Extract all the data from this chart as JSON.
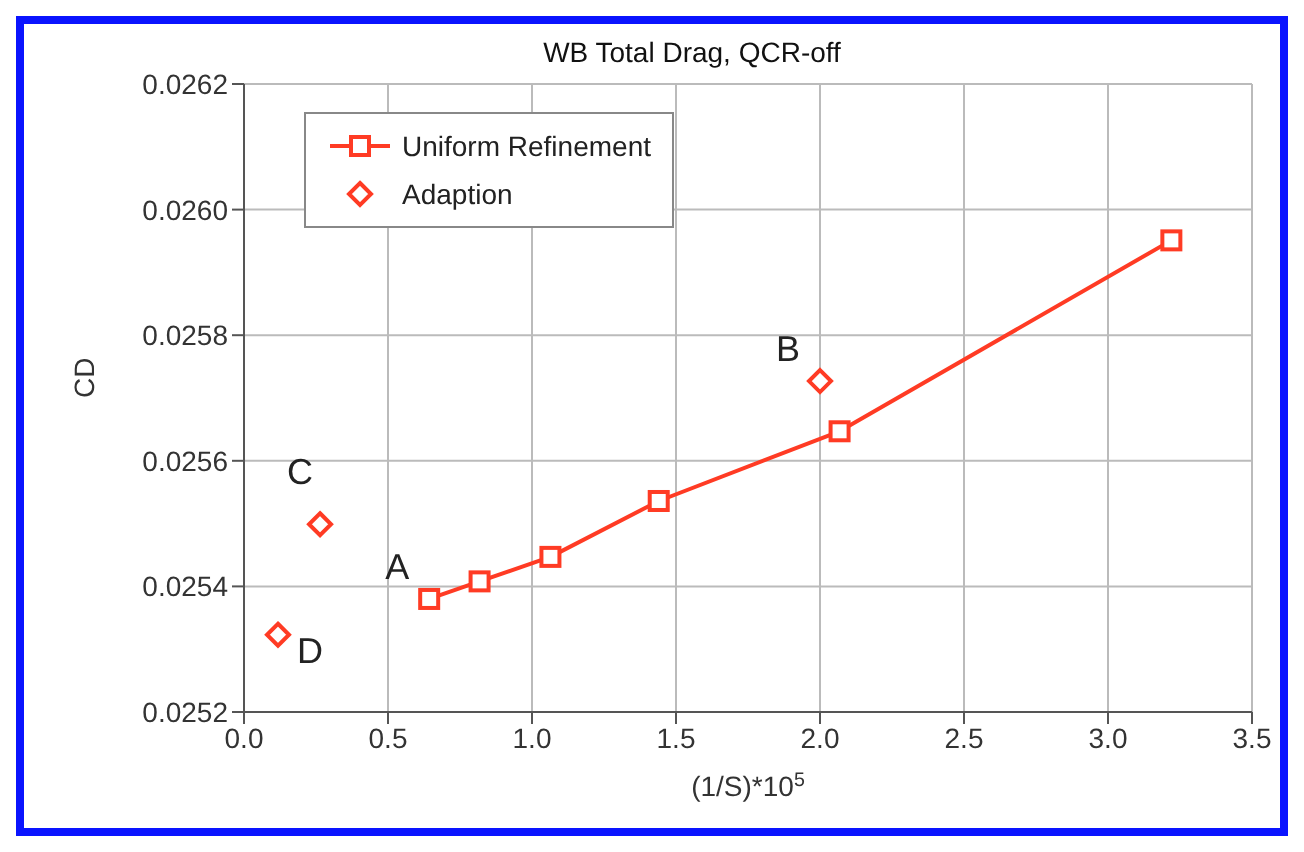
{
  "chart_data": {
    "type": "line",
    "title": "WB Total Drag, QCR-off",
    "xlabel": "(1/S)*10$^{5}$",
    "ylabel": "CD",
    "series": [
      {
        "name": "Uniform Refinement",
        "marker": "square",
        "color": "#ff3b24",
        "x": [
          0.643,
          0.818,
          1.064,
          1.44,
          2.068,
          3.22
        ],
        "values": [
          0.02538,
          0.025408,
          0.025447,
          0.025536,
          0.025647,
          0.025951
        ]
      },
      {
        "name": "Adaption",
        "type": "scatter",
        "marker": "diamond",
        "color": "#ff3b24",
        "x": [
          2.0,
          0.264,
          0.118
        ],
        "values": [
          0.025727,
          0.025499,
          0.025323
        ]
      }
    ],
    "xlim": [
      0,
      3.5
    ],
    "xticks": [
      {
        "value": 0,
        "label": "0.0"
      },
      0.5,
      {
        "value": 1,
        "label": "1.0"
      },
      1.5,
      {
        "value": 2,
        "label": "2.0"
      },
      2.5,
      {
        "value": 3,
        "label": "3.0"
      },
      3.5
    ],
    "ylim": [
      0.0252,
      0.0262
    ],
    "yticks": [
      0.0252,
      0.0254,
      0.0256,
      0.0258,
      {
        "value": 0.026,
        "label": "0.0260"
      },
      0.0262
    ],
    "grid": true,
    "legend": "top left",
    "annotations": [
      {
        "text": "A",
        "x": 0.643,
        "y": 0.02538
      },
      {
        "text": "B",
        "x": 2.0,
        "y": 0.025727
      },
      {
        "text": "C",
        "x": 0.264,
        "y": 0.025499
      },
      {
        "text": "D",
        "x": 0.118,
        "y": 0.025323
      }
    ]
  }
}
